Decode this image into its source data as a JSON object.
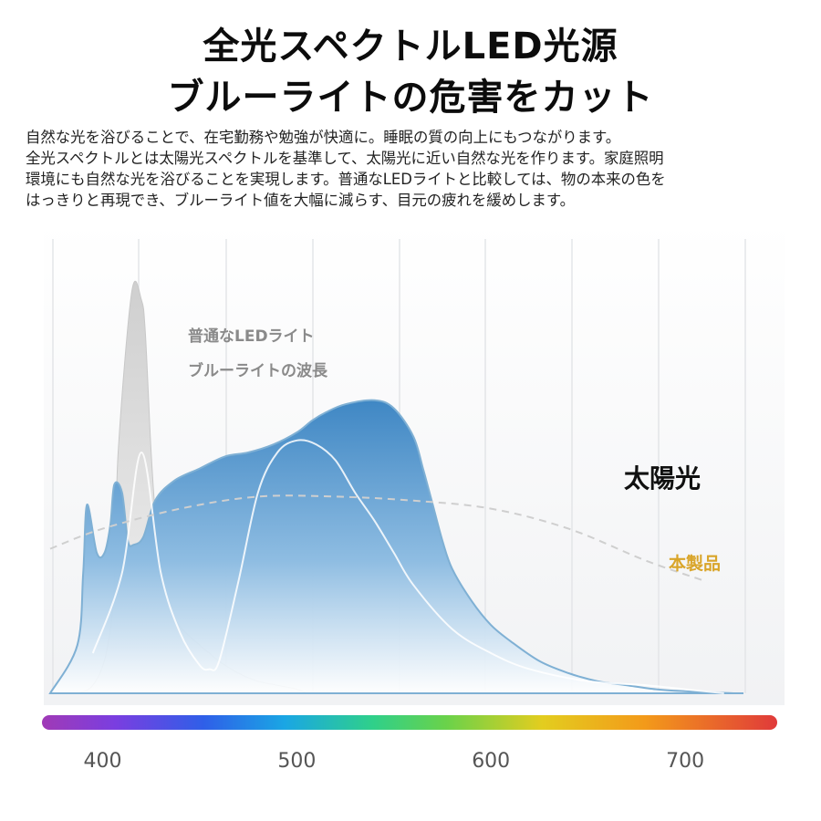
{
  "heading": {
    "line1": "全光スペクトルLED光源",
    "line2": "ブルーライトの危害をカット"
  },
  "description": [
    "自然な光を浴びることで、在宅勤務や勉強が快適に。睡眠の質の向上にもつながります。",
    "全光スペクトルとは太陽光スペクトルを基準して、太陽光に近い自然な光を作ります。家庭照明",
    "環境にも自然な光を浴びることを実現します。普通なLEDライトと比較しては、物の本来の色を",
    "はっきりと再現でき、ブルーライト値を大幅に減らす、目元の疲れを緩めします。"
  ],
  "chart_data": {
    "type": "area",
    "x_ticks": [
      400,
      500,
      600,
      700
    ],
    "xlim": [
      373,
      730
    ],
    "ylim": [
      0,
      1
    ],
    "grid": true,
    "annotations": {
      "ordinary_led_line1": "普通なLEDライト",
      "ordinary_led_line2": "ブルーライトの波長",
      "sunlight": "太陽光",
      "product": "本製品"
    },
    "colors": {
      "product_fill": "#4a8ec8",
      "product_line": "#7fb0d4",
      "ordinary_led_fill": "#d9d9d9",
      "sunlight_line": "#bdbdbd",
      "ordinary_led_label": "#8a8a8a",
      "product_label": "#d9a52a"
    },
    "series": [
      {
        "x": [
          373,
          387,
          390,
          392,
          397,
          401,
          404,
          406,
          410,
          413,
          416,
          421,
          427,
          437,
          450,
          463,
          475,
          488,
          500,
          508,
          515,
          525,
          540,
          550,
          560,
          565,
          570,
          575,
          580,
          590,
          600,
          610,
          625,
          640,
          655,
          670,
          685,
          700,
          715,
          725,
          730
        ],
        "values": [
          0,
          0.12,
          0.3,
          0.47,
          0.35,
          0.35,
          0.42,
          0.52,
          0.5,
          0.38,
          0.37,
          0.39,
          0.48,
          0.53,
          0.56,
          0.59,
          0.6,
          0.62,
          0.65,
          0.68,
          0.7,
          0.72,
          0.73,
          0.71,
          0.64,
          0.56,
          0.47,
          0.38,
          0.31,
          0.23,
          0.17,
          0.13,
          0.08,
          0.05,
          0.03,
          0.02,
          0.01,
          0.005,
          0.002,
          0,
          0
        ]
      },
      {
        "x": [
          373,
          395,
          405,
          408,
          415,
          420,
          422,
          425,
          428,
          433,
          438,
          443,
          450,
          455,
          460,
          470,
          480,
          490,
          500,
          505
        ],
        "values": [
          0,
          0.02,
          0.2,
          0.6,
          1.0,
          0.98,
          0.9,
          0.6,
          0.4,
          0.24,
          0.18,
          0.15,
          0.12,
          0.1,
          0.08,
          0.05,
          0.03,
          0.02,
          0.01,
          0
        ]
      },
      {
        "x": [
          395,
          410,
          420,
          430,
          440,
          450,
          455,
          460,
          470,
          480,
          490,
          500,
          510,
          520,
          530,
          540,
          550,
          560,
          580,
          600,
          620,
          650,
          680,
          700,
          720
        ],
        "values": [
          0.1,
          0.3,
          0.6,
          0.3,
          0.15,
          0.07,
          0.06,
          0.08,
          0.28,
          0.5,
          0.6,
          0.63,
          0.62,
          0.58,
          0.5,
          0.43,
          0.35,
          0.27,
          0.16,
          0.1,
          0.06,
          0.03,
          0.02,
          0.01,
          0
        ]
      },
      {
        "x": [
          373,
          400,
          440,
          480,
          520,
          560,
          600,
          640,
          680,
          710
        ],
        "values": [
          0.36,
          0.41,
          0.46,
          0.49,
          0.49,
          0.48,
          0.46,
          0.41,
          0.33,
          0.28
        ]
      }
    ]
  }
}
